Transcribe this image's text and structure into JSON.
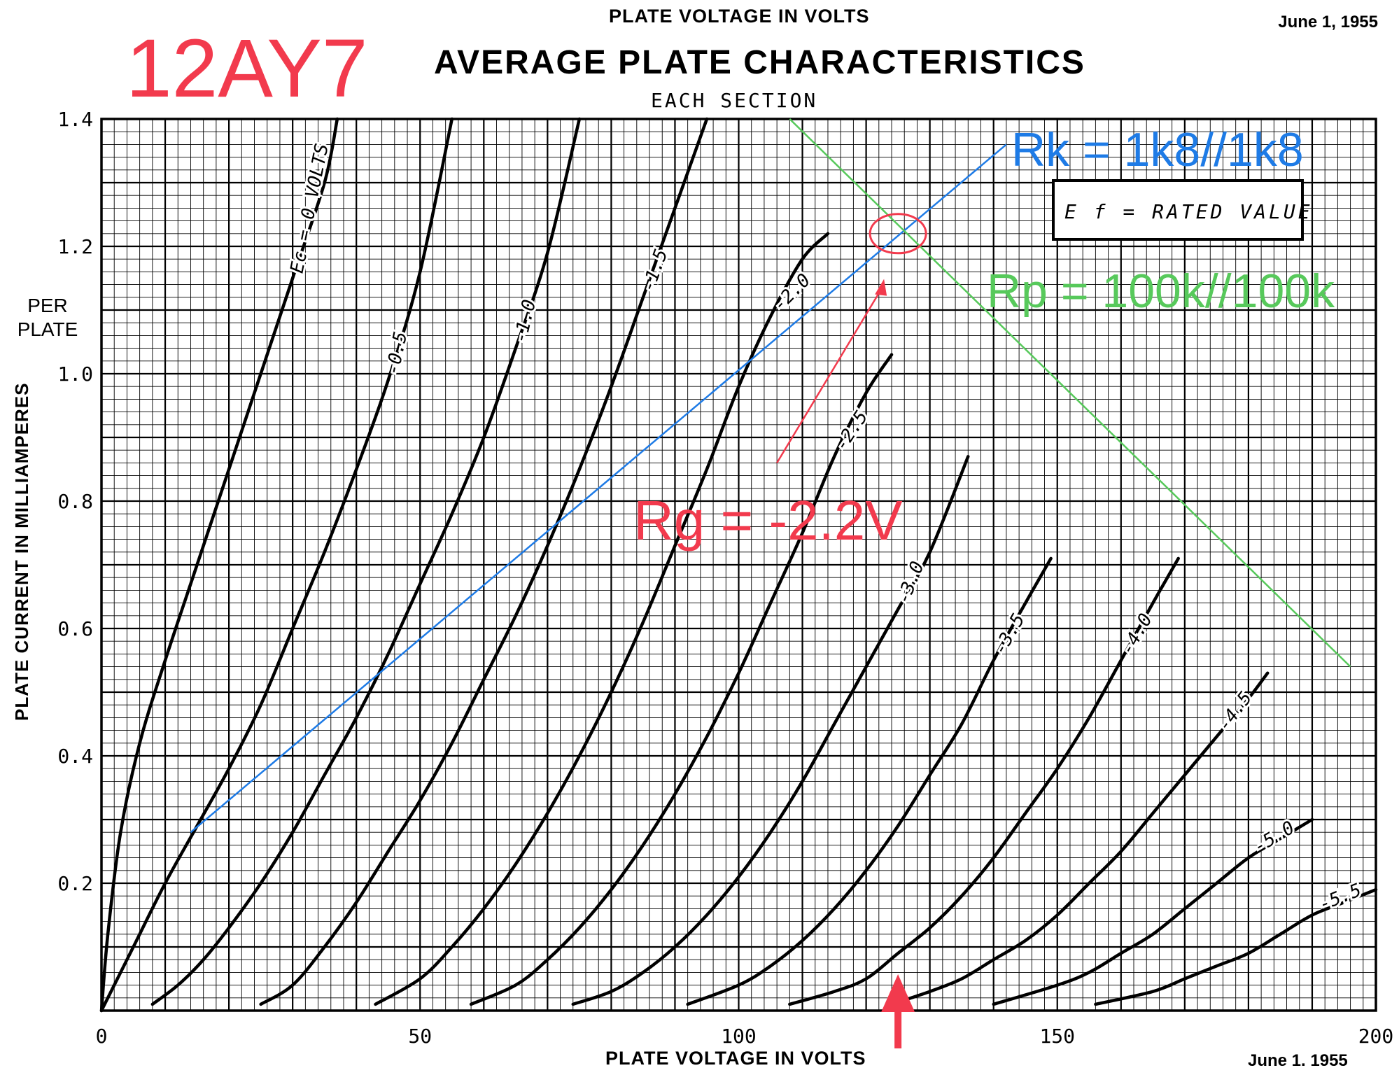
{
  "tube_label": "12AY7",
  "doc_date": "June 1, 1955",
  "doc_date_bottom": "June 1. 1955",
  "top_axis_label": "PLATE VOLTAGE IN VOLTS",
  "per_plate": [
    "PER",
    "PLATE"
  ],
  "notes": {
    "ef_box": "E f = RATED VALUE",
    "rk": "Rk = 1k8//1k8",
    "rp": "Rp = 100k//100k",
    "rg": "Rg = -2.2V"
  },
  "colors": {
    "grid": "#000000",
    "curves": "#000000",
    "rk_line": "#1e7be6",
    "rp_line": "#57c95b",
    "rg_annotation": "#f23a4d"
  },
  "chart_data": {
    "type": "line",
    "title": "AVERAGE PLATE CHARACTERISTICS",
    "subtitle": "EACH SECTION",
    "xlabel": "PLATE VOLTAGE IN VOLTS",
    "ylabel": "PLATE CURRENT IN MILLIAMPERES",
    "xlim": [
      0,
      200
    ],
    "ylim": [
      0,
      1.4
    ],
    "x_ticks": [
      "0",
      "50",
      "100",
      "150",
      "200"
    ],
    "y_ticks": [
      "0.2",
      "0.4",
      "0.6",
      "0.8",
      "1.0",
      "1.2",
      "1.4"
    ],
    "grid": true,
    "series": [
      {
        "name": "Ec = 0 VOLTS",
        "curve_label": "Ec = 0 VOLTS",
        "points": [
          [
            0,
            0
          ],
          [
            1,
            0.12
          ],
          [
            3,
            0.28
          ],
          [
            6,
            0.42
          ],
          [
            10,
            0.55
          ],
          [
            15,
            0.7
          ],
          [
            20,
            0.85
          ],
          [
            25,
            1.0
          ],
          [
            30,
            1.15
          ],
          [
            35,
            1.3
          ],
          [
            37,
            1.4
          ]
        ]
      },
      {
        "name": "-0.5",
        "points": [
          [
            0,
            0
          ],
          [
            5,
            0.1
          ],
          [
            10,
            0.2
          ],
          [
            15,
            0.29
          ],
          [
            20,
            0.38
          ],
          [
            25,
            0.48
          ],
          [
            30,
            0.6
          ],
          [
            35,
            0.72
          ],
          [
            40,
            0.85
          ],
          [
            45,
            0.99
          ],
          [
            50,
            1.16
          ],
          [
            55,
            1.4
          ]
        ]
      },
      {
        "name": "-1.0",
        "points": [
          [
            8,
            0.01
          ],
          [
            12,
            0.04
          ],
          [
            16,
            0.08
          ],
          [
            20,
            0.13
          ],
          [
            25,
            0.2
          ],
          [
            30,
            0.28
          ],
          [
            35,
            0.37
          ],
          [
            40,
            0.46
          ],
          [
            45,
            0.56
          ],
          [
            50,
            0.67
          ],
          [
            55,
            0.78
          ],
          [
            60,
            0.9
          ],
          [
            65,
            1.04
          ],
          [
            70,
            1.19
          ],
          [
            75,
            1.4
          ]
        ]
      },
      {
        "name": "-1.5",
        "points": [
          [
            25,
            0.01
          ],
          [
            30,
            0.04
          ],
          [
            35,
            0.1
          ],
          [
            40,
            0.17
          ],
          [
            45,
            0.25
          ],
          [
            50,
            0.33
          ],
          [
            55,
            0.42
          ],
          [
            60,
            0.52
          ],
          [
            65,
            0.62
          ],
          [
            70,
            0.73
          ],
          [
            75,
            0.85
          ],
          [
            80,
            0.98
          ],
          [
            85,
            1.12
          ],
          [
            90,
            1.26
          ],
          [
            95,
            1.4
          ]
        ]
      },
      {
        "name": "-2.0",
        "points": [
          [
            43,
            0.01
          ],
          [
            50,
            0.05
          ],
          [
            55,
            0.1
          ],
          [
            60,
            0.16
          ],
          [
            65,
            0.23
          ],
          [
            70,
            0.31
          ],
          [
            75,
            0.4
          ],
          [
            80,
            0.5
          ],
          [
            85,
            0.61
          ],
          [
            90,
            0.73
          ],
          [
            95,
            0.85
          ],
          [
            100,
            0.98
          ],
          [
            105,
            1.09
          ],
          [
            110,
            1.18
          ],
          [
            114,
            1.22
          ]
        ]
      },
      {
        "name": "-2.5",
        "points": [
          [
            58,
            0.01
          ],
          [
            65,
            0.04
          ],
          [
            70,
            0.08
          ],
          [
            75,
            0.13
          ],
          [
            80,
            0.19
          ],
          [
            85,
            0.26
          ],
          [
            90,
            0.34
          ],
          [
            95,
            0.43
          ],
          [
            100,
            0.53
          ],
          [
            105,
            0.64
          ],
          [
            110,
            0.75
          ],
          [
            115,
            0.87
          ],
          [
            120,
            0.97
          ],
          [
            124,
            1.03
          ]
        ]
      },
      {
        "name": "-3.0",
        "points": [
          [
            74,
            0.01
          ],
          [
            80,
            0.03
          ],
          [
            85,
            0.06
          ],
          [
            90,
            0.1
          ],
          [
            95,
            0.15
          ],
          [
            100,
            0.21
          ],
          [
            105,
            0.28
          ],
          [
            110,
            0.36
          ],
          [
            115,
            0.45
          ],
          [
            120,
            0.54
          ],
          [
            125,
            0.63
          ],
          [
            130,
            0.72
          ],
          [
            136,
            0.87
          ]
        ]
      },
      {
        "name": "-3.5",
        "points": [
          [
            92,
            0.01
          ],
          [
            100,
            0.04
          ],
          [
            105,
            0.07
          ],
          [
            110,
            0.11
          ],
          [
            115,
            0.16
          ],
          [
            120,
            0.22
          ],
          [
            125,
            0.29
          ],
          [
            130,
            0.37
          ],
          [
            135,
            0.45
          ],
          [
            140,
            0.55
          ],
          [
            145,
            0.64
          ],
          [
            149,
            0.71
          ]
        ]
      },
      {
        "name": "-4.0",
        "points": [
          [
            108,
            0.01
          ],
          [
            115,
            0.03
          ],
          [
            120,
            0.05
          ],
          [
            125,
            0.09
          ],
          [
            130,
            0.13
          ],
          [
            135,
            0.18
          ],
          [
            140,
            0.24
          ],
          [
            145,
            0.31
          ],
          [
            150,
            0.38
          ],
          [
            155,
            0.46
          ],
          [
            160,
            0.55
          ],
          [
            165,
            0.64
          ],
          [
            169,
            0.71
          ]
        ]
      },
      {
        "name": "-4.5",
        "points": [
          [
            124,
            0.01
          ],
          [
            130,
            0.03
          ],
          [
            135,
            0.05
          ],
          [
            140,
            0.08
          ],
          [
            145,
            0.11
          ],
          [
            150,
            0.15
          ],
          [
            155,
            0.2
          ],
          [
            160,
            0.25
          ],
          [
            165,
            0.31
          ],
          [
            170,
            0.37
          ],
          [
            175,
            0.43
          ],
          [
            180,
            0.49
          ],
          [
            183,
            0.53
          ]
        ]
      },
      {
        "name": "-5.0",
        "points": [
          [
            140,
            0.01
          ],
          [
            150,
            0.04
          ],
          [
            155,
            0.06
          ],
          [
            160,
            0.09
          ],
          [
            165,
            0.12
          ],
          [
            170,
            0.16
          ],
          [
            175,
            0.2
          ],
          [
            180,
            0.24
          ],
          [
            185,
            0.27
          ],
          [
            190,
            0.3
          ]
        ]
      },
      {
        "name": "-5.5",
        "points": [
          [
            156,
            0.01
          ],
          [
            165,
            0.03
          ],
          [
            170,
            0.05
          ],
          [
            175,
            0.07
          ],
          [
            180,
            0.09
          ],
          [
            185,
            0.12
          ],
          [
            190,
            0.15
          ],
          [
            195,
            0.17
          ],
          [
            200,
            0.19
          ]
        ]
      }
    ],
    "annotation_lines": [
      {
        "name": "Rk = 1k8//1k8",
        "points": [
          [
            14,
            0.28
          ],
          [
            142,
            1.36
          ]
        ]
      },
      {
        "name": "Rp = 100k//100k",
        "points": [
          [
            108,
            1.4
          ],
          [
            196,
            0.54
          ]
        ]
      }
    ],
    "operating_point": {
      "x": 125,
      "y": 1.22
    },
    "arrow_marker_x": 125
  }
}
